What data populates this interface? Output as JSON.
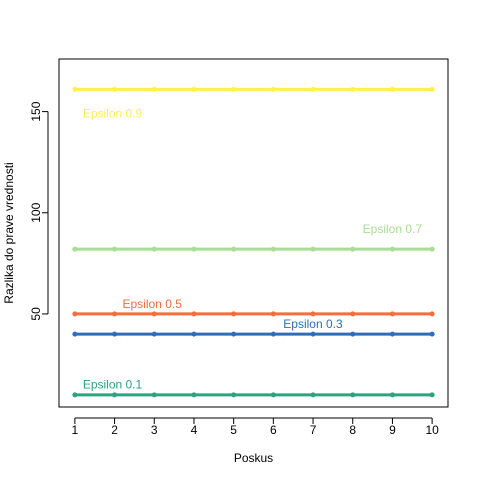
{
  "chart_data": {
    "type": "line",
    "xlabel": "Poskus",
    "ylabel": "Razlika do prave vrednosti",
    "x": [
      1,
      2,
      3,
      4,
      5,
      6,
      7,
      8,
      9,
      10
    ],
    "x_tick_labels": [
      "1",
      "2",
      "3",
      "4",
      "5",
      "6",
      "7",
      "8",
      "9",
      "10"
    ],
    "y_ticks": [
      50,
      100,
      150
    ],
    "y_tick_labels": [
      "50",
      "100",
      "150"
    ],
    "xlim": [
      0.6,
      10.4
    ],
    "ylim": [
      4,
      176
    ],
    "grid": false,
    "series": [
      {
        "name": "Epsilon 0.9",
        "color": "#ffef4f",
        "values": [
          161,
          161,
          161,
          161,
          161,
          161,
          161,
          161,
          161,
          161
        ],
        "label_x": 1.2,
        "label_y": 149
      },
      {
        "name": "Epsilon 0.7",
        "color": "#a8dd96",
        "values": [
          82,
          82,
          82,
          82,
          82,
          82,
          82,
          82,
          82,
          82
        ],
        "label_x": 8.25,
        "label_y": 92
      },
      {
        "name": "Epsilon 0.5",
        "color": "#f26f3b",
        "values": [
          50,
          50,
          50,
          50,
          50,
          50,
          50,
          50,
          50,
          50
        ],
        "label_x": 2.2,
        "label_y": 55
      },
      {
        "name": "Epsilon 0.3",
        "color": "#2f6db8",
        "values": [
          40,
          40,
          40,
          40,
          40,
          40,
          40,
          40,
          40,
          40
        ],
        "label_x": 6.25,
        "label_y": 45
      },
      {
        "name": "Epsilon 0.1",
        "color": "#2da37d",
        "values": [
          10,
          10,
          10,
          10,
          10,
          10,
          10,
          10,
          10,
          10
        ],
        "label_x": 1.2,
        "label_y": 15
      }
    ]
  }
}
